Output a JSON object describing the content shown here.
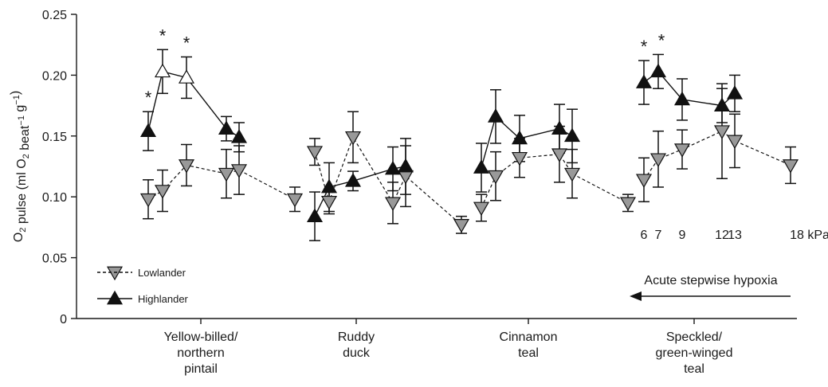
{
  "chart_data": {
    "type": "line",
    "ylabel_html": "O<sub>2</sub> pulse (ml O<sub>2</sub> beat<sup>−1</sup> g<sup>−1</sup>)",
    "ylabel_parts": [
      {
        "t": "O",
        "s": "n"
      },
      {
        "t": "2",
        "s": "sub"
      },
      {
        "t": " pulse (ml O",
        "s": "n"
      },
      {
        "t": "2",
        "s": "sub"
      },
      {
        "t": " beat",
        "s": "n"
      },
      {
        "t": "−1",
        "s": "sup"
      },
      {
        "t": " g",
        "s": "n"
      },
      {
        "t": "−1",
        "s": "sup"
      },
      {
        "t": ")",
        "s": "n"
      }
    ],
    "ylim": [
      0,
      0.25
    ],
    "yticks": [
      "0",
      "0.05",
      "0.10",
      "0.15",
      "0.20",
      "0.25"
    ],
    "categories": [
      "Yellow-billed/ northern pintail",
      "Ruddy duck",
      "Cinnamon teal",
      "Speckled/ green-winged teal"
    ],
    "category_lines": [
      [
        "Yellow-billed/",
        "northern",
        "pintail"
      ],
      [
        "Ruddy",
        "duck"
      ],
      [
        "Cinnamon",
        "teal"
      ],
      [
        "Speckled/",
        "green-winged",
        "teal"
      ]
    ],
    "kpa_levels": [
      6,
      7,
      9,
      12,
      13,
      18
    ],
    "kpa_labels": [
      "6",
      "7",
      "9",
      "12",
      "13",
      "18 kPa"
    ],
    "annotation": "Acute stepwise hypoxia",
    "legend": [
      {
        "name": "Lowlander",
        "marker": "triangle-down",
        "fill": "#999999",
        "line": "dashed"
      },
      {
        "name": "Highlander",
        "marker": "triangle-up",
        "fill": "#111111",
        "line": "solid"
      }
    ],
    "groups": [
      {
        "category": "Yellow-billed/ northern pintail",
        "lowlander": [
          [
            0.098,
            0.016
          ],
          [
            0.105,
            0.017
          ],
          [
            0.126,
            0.017
          ],
          [
            0.119,
            0.02
          ],
          [
            0.122,
            0.02
          ],
          [
            0.098,
            0.01
          ]
        ],
        "highlander": [
          [
            0.154,
            0.016
          ],
          [
            0.203,
            0.018
          ],
          [
            0.198,
            0.017
          ],
          [
            0.156,
            0.01
          ],
          [
            0.149,
            0.012
          ]
        ],
        "highlander_open": [
          false,
          true,
          true,
          false,
          false
        ],
        "significant": [
          true,
          true,
          true,
          false,
          false
        ]
      },
      {
        "category": "Ruddy duck",
        "lowlander": [
          [
            0.137,
            0.011
          ],
          [
            0.096,
            0.01
          ],
          [
            0.149,
            0.021
          ],
          [
            0.095,
            0.017
          ],
          [
            0.117,
            0.025
          ],
          [
            0.077,
            0.007
          ]
        ],
        "highlander": [
          [
            0.084,
            0.02
          ],
          [
            0.108,
            0.02
          ],
          [
            0.113,
            0.008
          ],
          [
            0.123,
            0.018
          ],
          [
            0.125,
            0.023
          ]
        ],
        "highlander_open": [
          false,
          false,
          false,
          false,
          false
        ],
        "significant": [
          false,
          false,
          false,
          false,
          false
        ]
      },
      {
        "category": "Cinnamon teal",
        "lowlander": [
          [
            0.091,
            0.011
          ],
          [
            0.117,
            0.02
          ],
          [
            0.132,
            0.016
          ],
          [
            0.135,
            0.023
          ],
          [
            0.119,
            0.02
          ],
          [
            0.095,
            0.007
          ]
        ],
        "highlander": [
          [
            0.124,
            0.02
          ],
          [
            0.166,
            0.022
          ],
          [
            0.148,
            0.019
          ],
          [
            0.156,
            0.02
          ],
          [
            0.15,
            0.022
          ]
        ],
        "highlander_open": [
          false,
          false,
          false,
          false,
          false
        ],
        "significant": [
          false,
          false,
          false,
          false,
          false
        ]
      },
      {
        "category": "Speckled/ green-winged teal",
        "lowlander": [
          [
            0.114,
            0.018
          ],
          [
            0.131,
            0.023
          ],
          [
            0.139,
            0.016
          ],
          [
            0.154,
            0.039
          ],
          [
            0.146,
            0.022
          ],
          [
            0.126,
            0.015
          ]
        ],
        "highlander": [
          [
            0.194,
            0.018
          ],
          [
            0.203,
            0.014
          ],
          [
            0.18,
            0.017
          ],
          [
            0.175,
            0.014
          ],
          [
            0.185,
            0.015
          ]
        ],
        "highlander_open": [
          false,
          false,
          false,
          false,
          false
        ],
        "significant": [
          true,
          true,
          false,
          false,
          false
        ]
      }
    ],
    "significance_marker": "*"
  }
}
